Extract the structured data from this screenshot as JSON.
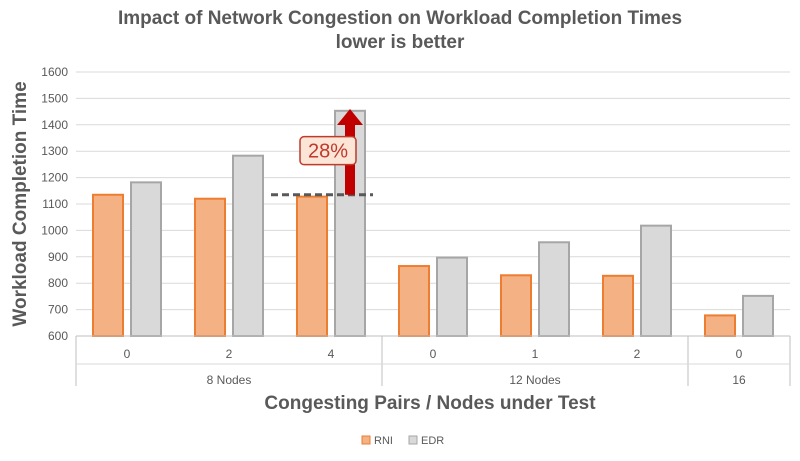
{
  "chart_data": {
    "type": "bar",
    "title": "Impact of Network Congestion on Workload Completion Times",
    "subtitle": "lower is better",
    "xlabel": "Congesting Pairs / Nodes under Test",
    "ylabel": "Workload Completion Time",
    "ylim": [
      600,
      1600
    ],
    "yticks": [
      600,
      700,
      800,
      900,
      1000,
      1100,
      1200,
      1300,
      1400,
      1500,
      1600
    ],
    "grid": true,
    "legend_position": "bottom",
    "categories": [
      "0",
      "2",
      "4",
      "0",
      "1",
      "2",
      "0"
    ],
    "groups": [
      {
        "label": "8 Nodes",
        "count": 3
      },
      {
        "label": "12 Nodes",
        "count": 3
      },
      {
        "label": "16",
        "count": 1
      }
    ],
    "series": [
      {
        "name": "RNI",
        "color": "#f4b183",
        "stroke": "#ed7d31",
        "values": [
          1135,
          1120,
          1128,
          865,
          830,
          828,
          678
        ]
      },
      {
        "name": "EDR",
        "color": "#d9d9d9",
        "stroke": "#a6a6a6",
        "values": [
          1182,
          1283,
          1453,
          897,
          955,
          1018,
          752
        ]
      }
    ],
    "annotation": {
      "text": "28%",
      "category_index": 2,
      "baseline_value": 1135,
      "arrow_top_value": 1460,
      "arrow_color": "#c00000"
    }
  }
}
